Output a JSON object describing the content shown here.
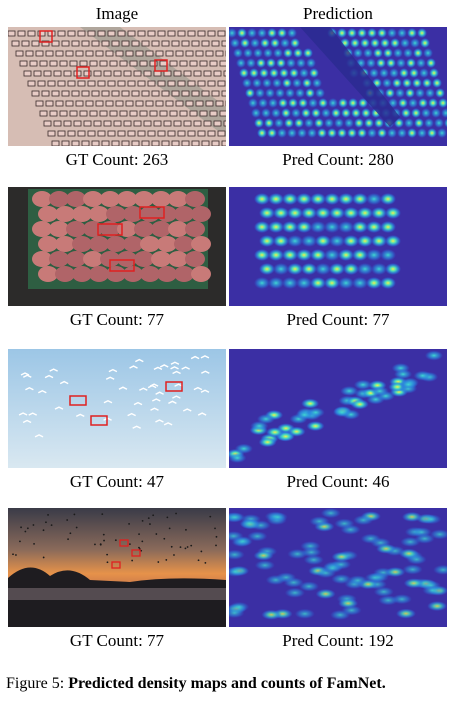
{
  "header": {
    "image": "Image",
    "prediction": "Prediction"
  },
  "rows": [
    {
      "gt": "GT Count: 263",
      "pred": "Pred Count: 280"
    },
    {
      "gt": "GT Count: 77",
      "pred": "Pred Count: 77"
    },
    {
      "gt": "GT Count: 47",
      "pred": "Pred Count: 46"
    },
    {
      "gt": "GT Count: 77",
      "pred": "Pred Count: 192"
    }
  ],
  "caption": {
    "label": "Figure 5:",
    "text": "Predicted density maps and counts of FamNet."
  }
}
